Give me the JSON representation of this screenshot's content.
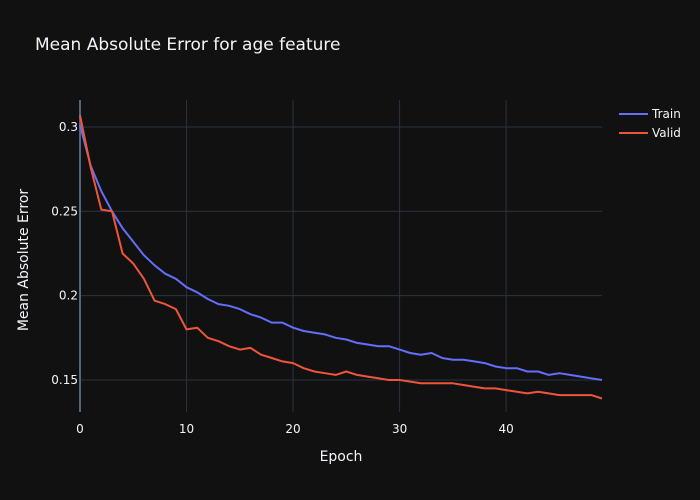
{
  "chart_data": {
    "type": "line",
    "title": "Mean Absolute Error for age feature",
    "xlabel": "Epoch",
    "ylabel": "Mean Absolute Error",
    "xlim": [
      0,
      49
    ],
    "ylim": [
      0.131,
      0.316
    ],
    "xticks": [
      0,
      10,
      20,
      30,
      40
    ],
    "xtick_labels": [
      "0",
      "10",
      "20",
      "30",
      "40"
    ],
    "yticks": [
      0.15,
      0.2,
      0.25,
      0.3
    ],
    "ytick_labels": [
      "0.15",
      "0.2",
      "0.25",
      "0.3"
    ],
    "grid": true,
    "legend": "top-right",
    "x": [
      0,
      1,
      2,
      3,
      4,
      5,
      6,
      7,
      8,
      9,
      10,
      11,
      12,
      13,
      14,
      15,
      16,
      17,
      18,
      19,
      20,
      21,
      22,
      23,
      24,
      25,
      26,
      27,
      28,
      29,
      30,
      31,
      32,
      33,
      34,
      35,
      36,
      37,
      38,
      39,
      40,
      41,
      42,
      43,
      44,
      45,
      46,
      47,
      48,
      49
    ],
    "series": [
      {
        "name": "Train",
        "color": "#636efa",
        "values": [
          0.301,
          0.277,
          0.262,
          0.25,
          0.24,
          0.232,
          0.224,
          0.218,
          0.213,
          0.21,
          0.205,
          0.202,
          0.198,
          0.195,
          0.194,
          0.192,
          0.189,
          0.187,
          0.184,
          0.184,
          0.181,
          0.179,
          0.178,
          0.177,
          0.175,
          0.174,
          0.172,
          0.171,
          0.17,
          0.17,
          0.168,
          0.166,
          0.165,
          0.166,
          0.163,
          0.162,
          0.162,
          0.161,
          0.16,
          0.158,
          0.157,
          0.157,
          0.155,
          0.155,
          0.153,
          0.154,
          0.153,
          0.152,
          0.151,
          0.15
        ]
      },
      {
        "name": "Valid",
        "color": "#ef553b",
        "values": [
          0.307,
          0.276,
          0.251,
          0.25,
          0.225,
          0.219,
          0.21,
          0.197,
          0.195,
          0.192,
          0.18,
          0.181,
          0.175,
          0.173,
          0.17,
          0.168,
          0.169,
          0.165,
          0.163,
          0.161,
          0.16,
          0.157,
          0.155,
          0.154,
          0.153,
          0.155,
          0.153,
          0.152,
          0.151,
          0.15,
          0.15,
          0.149,
          0.148,
          0.148,
          0.148,
          0.148,
          0.147,
          0.146,
          0.145,
          0.145,
          0.144,
          0.143,
          0.142,
          0.143,
          0.142,
          0.141,
          0.141,
          0.141,
          0.141,
          0.139
        ]
      }
    ]
  }
}
